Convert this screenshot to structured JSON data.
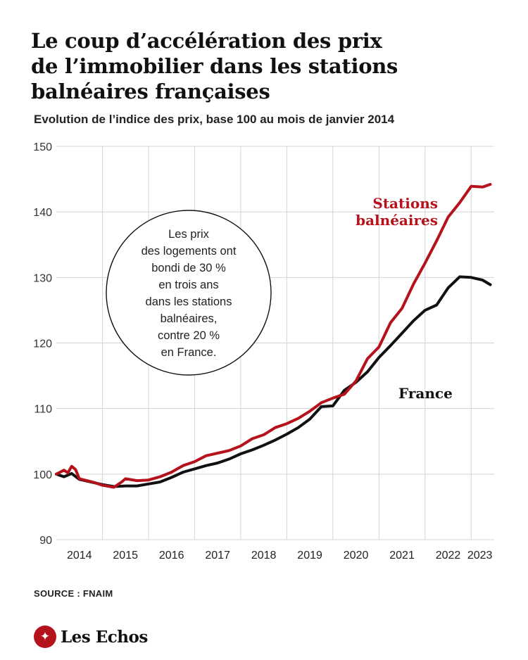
{
  "header": {
    "title_lines": [
      "Le coup d’accélération des prix",
      "de l’immobilier dans les stations",
      "balnéaires françaises"
    ],
    "subtitle": "Evolution de l’indice des prix, base 100 au mois de janvier 2014"
  },
  "footer": {
    "source": "SOURCE : FNAIM",
    "brand": "Les Echos",
    "brand_color": "#b5121b"
  },
  "chart_data": {
    "type": "line",
    "ylim": [
      90,
      150
    ],
    "yticks": [
      90,
      100,
      110,
      120,
      130,
      140,
      150
    ],
    "x_tick_labels": [
      "2014",
      "2015",
      "2016",
      "2017",
      "2018",
      "2019",
      "2020",
      "2021",
      "2022",
      "2023"
    ],
    "grid": true,
    "annotation": {
      "lines": [
        "Les prix",
        "des logements ont",
        "bondi de 30 %",
        "en trois ans",
        "dans les stations",
        "balnéaires,",
        "contre 20 %",
        "en France."
      ]
    },
    "series": [
      {
        "name_lines": [
          "Stations",
          "balnéaires"
        ],
        "color": "#b5121b",
        "points": [
          [
            "2014-01",
            100.0
          ],
          [
            "2014-02",
            100.3
          ],
          [
            "2014-03",
            100.6
          ],
          [
            "2014-04",
            100.2
          ],
          [
            "2014-05",
            101.2
          ],
          [
            "2014-06",
            100.7
          ],
          [
            "2014-07",
            99.3
          ],
          [
            "2014-09",
            99.0
          ],
          [
            "2014-11",
            98.7
          ],
          [
            "2015-01",
            98.3
          ],
          [
            "2015-04",
            98.0
          ],
          [
            "2015-06",
            98.8
          ],
          [
            "2015-07",
            99.3
          ],
          [
            "2015-10",
            99.0
          ],
          [
            "2016-01",
            99.1
          ],
          [
            "2016-04",
            99.6
          ],
          [
            "2016-07",
            100.3
          ],
          [
            "2016-10",
            101.3
          ],
          [
            "2017-01",
            101.9
          ],
          [
            "2017-04",
            102.8
          ],
          [
            "2017-07",
            103.2
          ],
          [
            "2017-10",
            103.6
          ],
          [
            "2018-01",
            104.3
          ],
          [
            "2018-04",
            105.4
          ],
          [
            "2018-07",
            106.0
          ],
          [
            "2018-10",
            107.1
          ],
          [
            "2019-01",
            107.7
          ],
          [
            "2019-04",
            108.5
          ],
          [
            "2019-07",
            109.6
          ],
          [
            "2019-10",
            110.9
          ],
          [
            "2020-01",
            111.6
          ],
          [
            "2020-04",
            112.2
          ],
          [
            "2020-07",
            114.2
          ],
          [
            "2020-10",
            117.6
          ],
          [
            "2021-01",
            119.4
          ],
          [
            "2021-04",
            123.1
          ],
          [
            "2021-07",
            125.3
          ],
          [
            "2021-10",
            129.0
          ],
          [
            "2022-01",
            132.2
          ],
          [
            "2022-04",
            135.6
          ],
          [
            "2022-07",
            139.2
          ],
          [
            "2022-10",
            141.4
          ],
          [
            "2023-01",
            143.9
          ],
          [
            "2023-04",
            143.8
          ],
          [
            "2023-06",
            144.2
          ]
        ]
      },
      {
        "name_lines": [
          "France"
        ],
        "color": "#111111",
        "points": [
          [
            "2014-01",
            100.0
          ],
          [
            "2014-03",
            99.6
          ],
          [
            "2014-05",
            100.1
          ],
          [
            "2014-07",
            99.2
          ],
          [
            "2014-10",
            98.8
          ],
          [
            "2015-01",
            98.4
          ],
          [
            "2015-04",
            98.1
          ],
          [
            "2015-07",
            98.2
          ],
          [
            "2015-10",
            98.2
          ],
          [
            "2016-01",
            98.5
          ],
          [
            "2016-04",
            98.8
          ],
          [
            "2016-07",
            99.5
          ],
          [
            "2016-10",
            100.3
          ],
          [
            "2017-01",
            100.8
          ],
          [
            "2017-04",
            101.3
          ],
          [
            "2017-07",
            101.7
          ],
          [
            "2017-10",
            102.3
          ],
          [
            "2018-01",
            103.1
          ],
          [
            "2018-04",
            103.7
          ],
          [
            "2018-07",
            104.4
          ],
          [
            "2018-10",
            105.2
          ],
          [
            "2019-01",
            106.1
          ],
          [
            "2019-04",
            107.1
          ],
          [
            "2019-07",
            108.4
          ],
          [
            "2019-10",
            110.3
          ],
          [
            "2020-01",
            110.4
          ],
          [
            "2020-04",
            112.8
          ],
          [
            "2020-07",
            114.0
          ],
          [
            "2020-10",
            115.6
          ],
          [
            "2021-01",
            117.8
          ],
          [
            "2021-04",
            119.6
          ],
          [
            "2021-07",
            121.5
          ],
          [
            "2021-10",
            123.4
          ],
          [
            "2022-01",
            125.0
          ],
          [
            "2022-04",
            125.8
          ],
          [
            "2022-07",
            128.4
          ],
          [
            "2022-10",
            130.1
          ],
          [
            "2023-01",
            130.0
          ],
          [
            "2023-04",
            129.6
          ],
          [
            "2023-06",
            128.9
          ]
        ]
      }
    ]
  }
}
